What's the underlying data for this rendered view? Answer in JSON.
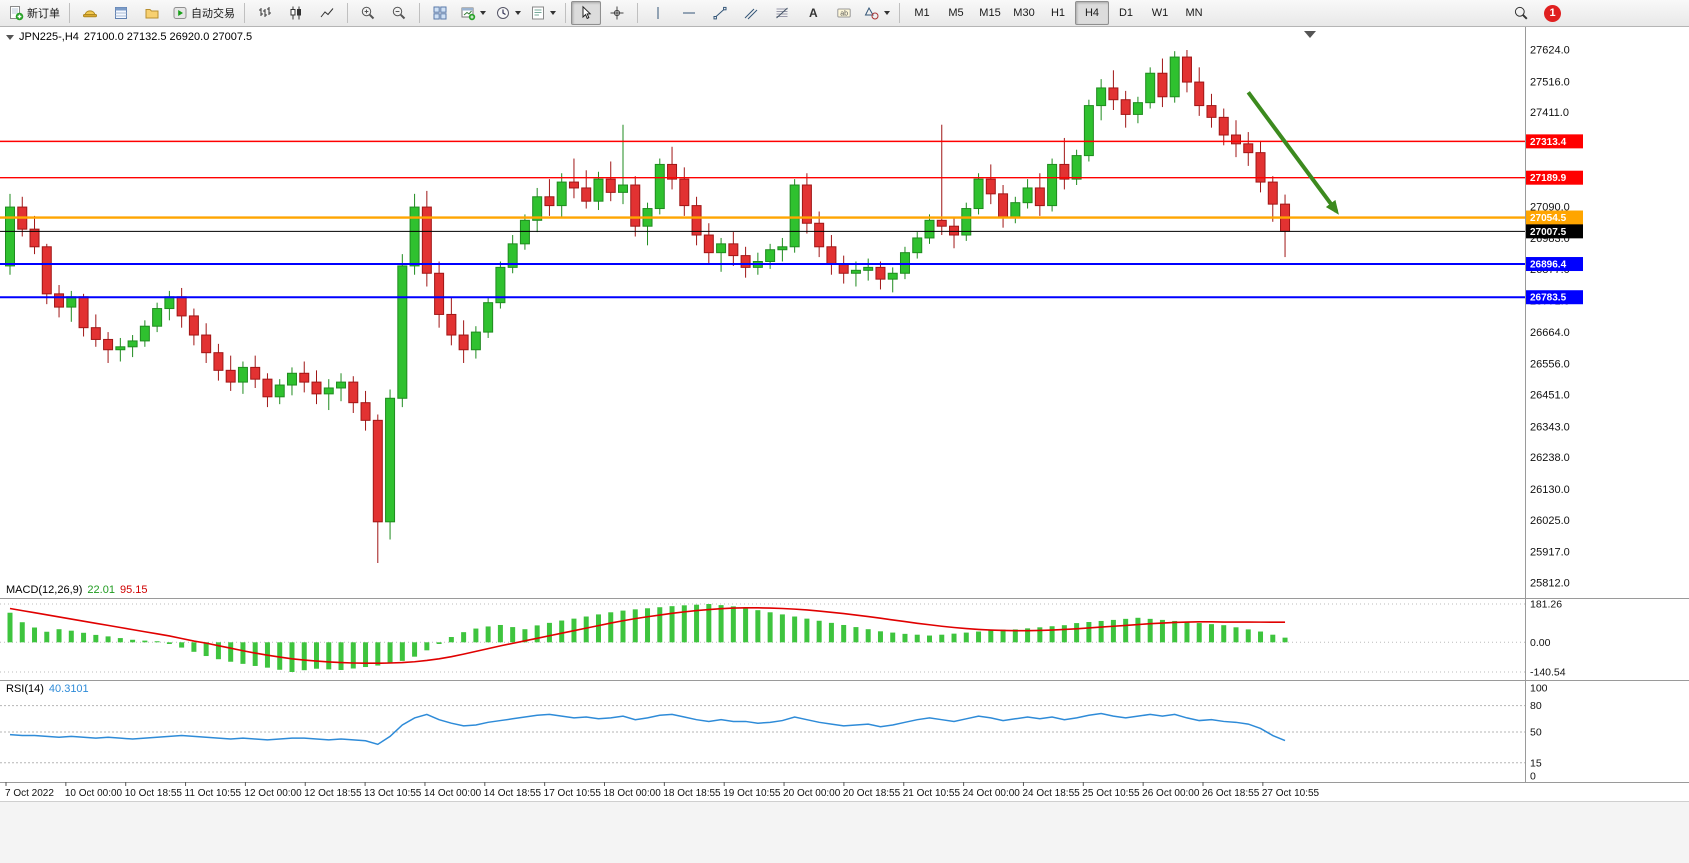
{
  "toolbar": {
    "new_order_label": "新订单",
    "auto_trading_label": "自动交易",
    "timeframes": [
      "M1",
      "M5",
      "M15",
      "M30",
      "H1",
      "H4",
      "D1",
      "W1",
      "MN"
    ],
    "active_timeframe": "H4",
    "notification_badge": "1"
  },
  "chart_data": {
    "type": "candlestick",
    "symbol": "JPN225-",
    "timeframe": "H4",
    "header": {
      "symbol_period": "JPN225-,H4",
      "ohlc": "27100.0 27132.5 26920.0 27007.5"
    },
    "current_ohlc": {
      "open": 27100.0,
      "high": 27132.5,
      "low": 26920.0,
      "close": 27007.5
    },
    "y_axis": {
      "ticks": [
        27624,
        27516,
        27411,
        27303,
        27196,
        27090,
        26983,
        26877,
        26771,
        26664,
        26556,
        26451,
        26343,
        26238,
        26130,
        26025,
        25917,
        25812
      ]
    },
    "x_axis": {
      "labels": [
        "7 Oct 2022",
        "10 Oct 00:00",
        "10 Oct 18:55",
        "11 Oct 10:55",
        "12 Oct 00:00",
        "12 Oct 18:55",
        "13 Oct 10:55",
        "14 Oct 00:00",
        "14 Oct 18:55",
        "17 Oct 10:55",
        "18 Oct 00:00",
        "18 Oct 18:55",
        "19 Oct 10:55",
        "20 Oct 00:00",
        "20 Oct 18:55",
        "21 Oct 10:55",
        "24 Oct 00:00",
        "24 Oct 18:55",
        "25 Oct 10:55",
        "26 Oct 00:00",
        "26 Oct 18:55",
        "27 Oct 10:55"
      ]
    },
    "hlines": [
      {
        "value": 27313.4,
        "label": "27313.4",
        "color": "#ff0000",
        "width": 1.4
      },
      {
        "value": 27189.9,
        "label": "27189.9",
        "color": "#ff0000",
        "width": 1.4
      },
      {
        "value": 27054.5,
        "label": "27054.5",
        "color": "#ffa500",
        "width": 2.4
      },
      {
        "value": 27007.5,
        "label": "27007.5",
        "color": "#000000",
        "width": 1
      },
      {
        "value": 26896.4,
        "label": "26896.4",
        "color": "#0000ff",
        "width": 2
      },
      {
        "value": 26783.5,
        "label": "26783.5",
        "color": "#0000ff",
        "width": 2
      }
    ],
    "candles": [
      [
        26890,
        27135,
        26860,
        27090
      ],
      [
        27090,
        27125,
        26990,
        27015
      ],
      [
        27015,
        27060,
        26930,
        26955
      ],
      [
        26955,
        26965,
        26760,
        26795
      ],
      [
        26795,
        26825,
        26715,
        26750
      ],
      [
        26750,
        26805,
        26700,
        26785
      ],
      [
        26785,
        26795,
        26650,
        26680
      ],
      [
        26680,
        26725,
        26615,
        26640
      ],
      [
        26640,
        26665,
        26560,
        26605
      ],
      [
        26605,
        26645,
        26565,
        26615
      ],
      [
        26615,
        26655,
        26580,
        26635
      ],
      [
        26635,
        26705,
        26615,
        26685
      ],
      [
        26685,
        26765,
        26665,
        26745
      ],
      [
        26745,
        26805,
        26705,
        26785
      ],
      [
        26785,
        26815,
        26680,
        26720
      ],
      [
        26720,
        26745,
        26620,
        26655
      ],
      [
        26655,
        26695,
        26560,
        26595
      ],
      [
        26595,
        26625,
        26500,
        26535
      ],
      [
        26535,
        26585,
        26465,
        26495
      ],
      [
        26495,
        26565,
        26455,
        26545
      ],
      [
        26545,
        26585,
        26475,
        26505
      ],
      [
        26505,
        26525,
        26410,
        26445
      ],
      [
        26445,
        26505,
        26420,
        26485
      ],
      [
        26485,
        26545,
        26450,
        26525
      ],
      [
        26525,
        26565,
        26460,
        26495
      ],
      [
        26495,
        26535,
        26420,
        26455
      ],
      [
        26455,
        26505,
        26400,
        26475
      ],
      [
        26475,
        26525,
        26430,
        26495
      ],
      [
        26495,
        26515,
        26390,
        26425
      ],
      [
        26425,
        26465,
        26330,
        26365
      ],
      [
        26365,
        26385,
        25880,
        26020
      ],
      [
        26020,
        26470,
        25960,
        26440
      ],
      [
        26440,
        26930,
        26410,
        26890
      ],
      [
        26890,
        27135,
        26860,
        27090
      ],
      [
        27090,
        27145,
        26820,
        26865
      ],
      [
        26865,
        26905,
        26680,
        26725
      ],
      [
        26725,
        26785,
        26620,
        26655
      ],
      [
        26655,
        26705,
        26560,
        26605
      ],
      [
        26605,
        26685,
        26575,
        26665
      ],
      [
        26665,
        26785,
        26645,
        26765
      ],
      [
        26765,
        26905,
        26745,
        26885
      ],
      [
        26885,
        26995,
        26865,
        26965
      ],
      [
        26965,
        27065,
        26945,
        27045
      ],
      [
        27045,
        27155,
        27005,
        27125
      ],
      [
        27125,
        27185,
        27060,
        27095
      ],
      [
        27095,
        27205,
        27055,
        27175
      ],
      [
        27175,
        27255,
        27120,
        27155
      ],
      [
        27155,
        27215,
        27085,
        27110
      ],
      [
        27110,
        27210,
        27080,
        27185
      ],
      [
        27185,
        27245,
        27110,
        27140
      ],
      [
        27140,
        27370,
        27100,
        27165
      ],
      [
        27165,
        27195,
        26990,
        27025
      ],
      [
        27025,
        27105,
        26960,
        27085
      ],
      [
        27085,
        27255,
        27065,
        27235
      ],
      [
        27235,
        27295,
        27150,
        27185
      ],
      [
        27185,
        27225,
        27060,
        27095
      ],
      [
        27095,
        27125,
        26960,
        26995
      ],
      [
        26995,
        27035,
        26900,
        26935
      ],
      [
        26935,
        26985,
        26870,
        26965
      ],
      [
        26965,
        27005,
        26890,
        26925
      ],
      [
        26925,
        26955,
        26850,
        26885
      ],
      [
        26885,
        26935,
        26860,
        26905
      ],
      [
        26905,
        26965,
        26880,
        26945
      ],
      [
        26945,
        26985,
        26905,
        26955
      ],
      [
        26955,
        27185,
        26935,
        27165
      ],
      [
        27165,
        27205,
        27000,
        27035
      ],
      [
        27035,
        27075,
        26920,
        26955
      ],
      [
        26955,
        26995,
        26860,
        26895
      ],
      [
        26895,
        26925,
        26830,
        26865
      ],
      [
        26865,
        26905,
        26820,
        26875
      ],
      [
        26875,
        26915,
        26840,
        26885
      ],
      [
        26885,
        26905,
        26810,
        26845
      ],
      [
        26845,
        26885,
        26800,
        26865
      ],
      [
        26865,
        26955,
        26845,
        26935
      ],
      [
        26935,
        27005,
        26915,
        26985
      ],
      [
        26985,
        27065,
        26965,
        27045
      ],
      [
        27045,
        27370,
        26995,
        27025
      ],
      [
        27025,
        27055,
        26950,
        26995
      ],
      [
        26995,
        27105,
        26975,
        27085
      ],
      [
        27085,
        27205,
        27065,
        27185
      ],
      [
        27185,
        27235,
        27100,
        27135
      ],
      [
        27135,
        27165,
        27020,
        27055
      ],
      [
        27055,
        27125,
        27035,
        27105
      ],
      [
        27105,
        27185,
        27085,
        27155
      ],
      [
        27155,
        27205,
        27060,
        27095
      ],
      [
        27095,
        27255,
        27075,
        27235
      ],
      [
        27235,
        27325,
        27150,
        27185
      ],
      [
        27185,
        27285,
        27165,
        27265
      ],
      [
        27265,
        27455,
        27245,
        27435
      ],
      [
        27435,
        27525,
        27385,
        27495
      ],
      [
        27495,
        27555,
        27420,
        27455
      ],
      [
        27455,
        27485,
        27360,
        27405
      ],
      [
        27405,
        27465,
        27375,
        27445
      ],
      [
        27445,
        27565,
        27425,
        27545
      ],
      [
        27545,
        27595,
        27430,
        27465
      ],
      [
        27465,
        27620,
        27445,
        27600
      ],
      [
        27600,
        27624,
        27480,
        27515
      ],
      [
        27515,
        27565,
        27400,
        27435
      ],
      [
        27435,
        27475,
        27360,
        27395
      ],
      [
        27395,
        27425,
        27300,
        27335
      ],
      [
        27335,
        27385,
        27260,
        27305
      ],
      [
        27305,
        27345,
        27230,
        27275
      ],
      [
        27275,
        27315,
        27140,
        27175
      ],
      [
        27175,
        27195,
        27040,
        27100
      ],
      [
        27100,
        27132.5,
        26920,
        27007.5
      ]
    ],
    "macd": {
      "label": "MACD(12,26,9)",
      "main_value": "22.01",
      "signal_value": "95.15",
      "axis_labels": [
        "181.26",
        "0.00",
        "-140.54"
      ],
      "max": 181.26,
      "min": -140.54,
      "histogram": [
        140,
        95,
        70,
        50,
        62,
        55,
        45,
        35,
        28,
        20,
        12,
        8,
        5,
        -8,
        -25,
        -45,
        -65,
        -80,
        -92,
        -102,
        -112,
        -120,
        -130,
        -140.54,
        -132,
        -125,
        -128,
        -131,
        -124,
        -117,
        -110,
        -100,
        -88,
        -68,
        -38,
        -8,
        25,
        48,
        65,
        75,
        82,
        72,
        62,
        80,
        92,
        103,
        112,
        122,
        132,
        142,
        150,
        156,
        161,
        166,
        171,
        175,
        178,
        181.26,
        176,
        170,
        162,
        152,
        142,
        132,
        122,
        112,
        102,
        92,
        82,
        72,
        62,
        52,
        46,
        40,
        36,
        32,
        36,
        41,
        46,
        51,
        56,
        60,
        61,
        66,
        71,
        76,
        81,
        91,
        96,
        101,
        106,
        111,
        116,
        111,
        106,
        101,
        96,
        91,
        86,
        81,
        71,
        61,
        51,
        36,
        22.01
      ],
      "signal": [
        160,
        150,
        140,
        130,
        120,
        110,
        100,
        90,
        80,
        70,
        60,
        50,
        40,
        30,
        18,
        6,
        -4,
        -16,
        -28,
        -40,
        -51,
        -61,
        -70,
        -78,
        -84,
        -89,
        -93,
        -96,
        -98,
        -99,
        -99,
        -98,
        -96,
        -92,
        -86,
        -78,
        -68,
        -56,
        -43,
        -30,
        -17,
        -5,
        7,
        19,
        31,
        43,
        55,
        67,
        79,
        91,
        102,
        112,
        121,
        129,
        137,
        144,
        150,
        155,
        159,
        162,
        163,
        163,
        162,
        160,
        157,
        153,
        148,
        142,
        136,
        129,
        122,
        114,
        106,
        98,
        90,
        83,
        76,
        70,
        65,
        61,
        58,
        56,
        55,
        55,
        56,
        58,
        61,
        64,
        68,
        72,
        76,
        80,
        84,
        88,
        91,
        94,
        96,
        97,
        97,
        96,
        96,
        96,
        95.5,
        95.3,
        95.15
      ]
    },
    "rsi": {
      "label": "RSI(14)",
      "value": "40.3101",
      "levels": [
        100,
        80,
        50,
        15,
        0
      ],
      "dashed_levels": [
        80,
        50,
        15
      ],
      "values": [
        47,
        46,
        46,
        45,
        44,
        45,
        44,
        43,
        44,
        43,
        42,
        43,
        44,
        45,
        46,
        45,
        44,
        43,
        42,
        43,
        42,
        41,
        42,
        43,
        43,
        42,
        41,
        42,
        41,
        40,
        36,
        45,
        58,
        66,
        70,
        64,
        60,
        57,
        58,
        61,
        63,
        65,
        67,
        69,
        70,
        68,
        66,
        67,
        65,
        66,
        68,
        64,
        66,
        69,
        70,
        67,
        64,
        62,
        64,
        62,
        62,
        60,
        61,
        63,
        67,
        64,
        61,
        59,
        57,
        58,
        59,
        56,
        58,
        61,
        64,
        66,
        64,
        62,
        65,
        68,
        66,
        63,
        65,
        67,
        65,
        67,
        64,
        66,
        69,
        71,
        68,
        66,
        68,
        70,
        68,
        70,
        66,
        63,
        64,
        62,
        61,
        59,
        54,
        46,
        40.31
      ]
    },
    "trend_arrow": {
      "from_index": 101,
      "from_price": 27480,
      "to_index": 108.2,
      "to_price": 27075,
      "color": "#3c8a1e"
    },
    "colors": {
      "candle_up": "#2fc12f",
      "candle_up_border": "#1f8b1f",
      "candle_down": "#e23232",
      "candle_down_border": "#a01616",
      "macd_histogram": "#3ec43e",
      "macd_signal": "#e00000",
      "rsi_line": "#2e8bd8"
    }
  }
}
